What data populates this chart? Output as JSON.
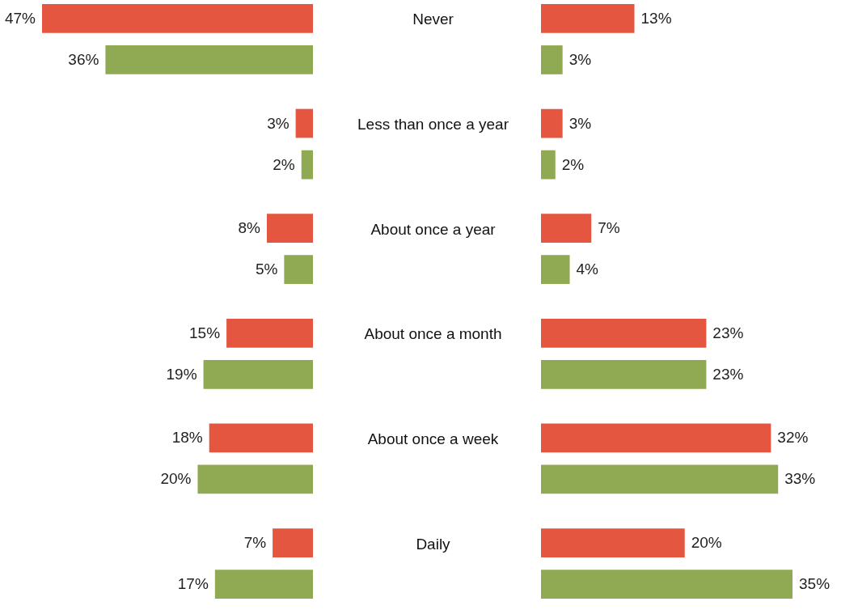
{
  "chart_data": [
    {
      "type": "bar",
      "orientation": "horizontal",
      "tick_labels": "y",
      "categories": [
        "Never",
        "Less than once a year",
        "About once a year",
        "About once a month",
        "About once a week",
        "Daily"
      ],
      "series": [
        {
          "color": "#e4563f",
          "values": [
            47,
            3,
            8,
            15,
            18,
            7
          ],
          "value_labels": [
            "47%",
            "3%",
            "8%",
            "15%",
            "18%",
            "7%"
          ]
        },
        {
          "color": "#8faa52",
          "values": [
            36,
            2,
            5,
            19,
            20,
            17
          ],
          "value_labels": [
            "36%",
            "2%",
            "5%",
            "19%",
            "20%",
            "17%"
          ]
        }
      ]
    },
    {
      "type": "bar",
      "orientation": "horizontal",
      "tick_labels": false,
      "series": [
        {
          "color": "#e4563f",
          "values": [
            13,
            3,
            7,
            23,
            32,
            20
          ],
          "value_labels": [
            "13%",
            "3%",
            "7%",
            "23%",
            "32%",
            "20%"
          ]
        },
        {
          "color": "#8faa52",
          "values": [
            3,
            2,
            4,
            23,
            33,
            35
          ],
          "value_labels": [
            "3%",
            "2%",
            "4%",
            "23%",
            "33%",
            "35%"
          ]
        }
      ]
    }
  ]
}
